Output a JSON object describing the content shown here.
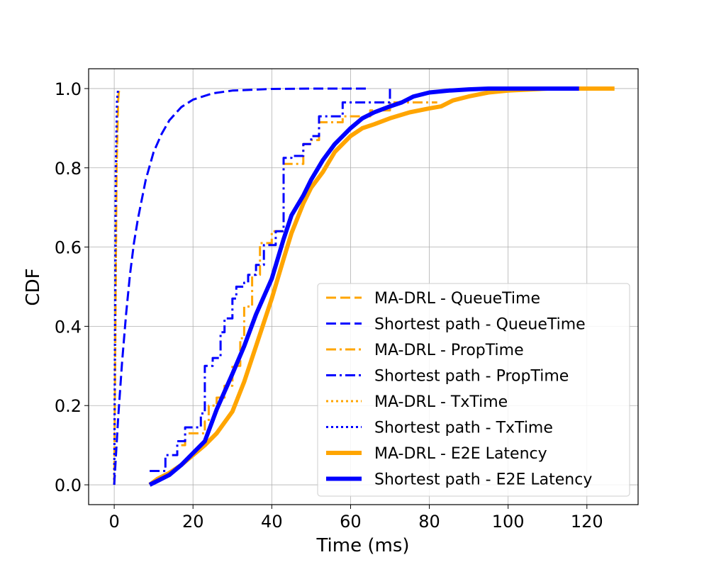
{
  "chart_data": {
    "type": "line",
    "xlabel": "Time (ms)",
    "ylabel": "CDF",
    "xlim": [
      -6.5,
      133
    ],
    "ylim": [
      -0.05,
      1.05
    ],
    "xticks": [
      0,
      20,
      40,
      60,
      80,
      100,
      120
    ],
    "yticks": [
      0.0,
      0.2,
      0.4,
      0.6,
      0.8,
      1.0
    ],
    "xtick_labels": [
      "0",
      "20",
      "40",
      "60",
      "80",
      "100",
      "120"
    ],
    "ytick_labels": [
      "0.0",
      "0.2",
      "0.4",
      "0.6",
      "0.8",
      "1.0"
    ],
    "grid": true,
    "legend_position": "lower-right",
    "series": [
      {
        "name": "MA-DRL - QueueTime",
        "color": "#FFA500",
        "style": "dashed",
        "thick": false,
        "step": false,
        "x": [
          0,
          0.3,
          0.6,
          1.0,
          1.2
        ],
        "y": [
          0,
          0.4,
          0.8,
          0.97,
          1.0
        ]
      },
      {
        "name": "Shortest path - QueueTime",
        "color": "#0000FF",
        "style": "dashed",
        "thick": false,
        "step": false,
        "x": [
          0,
          1,
          2,
          3,
          4,
          5,
          6,
          8,
          10,
          12,
          14,
          17,
          20,
          25,
          30,
          40,
          50,
          64
        ],
        "y": [
          0,
          0.17,
          0.31,
          0.43,
          0.53,
          0.61,
          0.67,
          0.77,
          0.84,
          0.885,
          0.92,
          0.953,
          0.972,
          0.988,
          0.995,
          0.999,
          1.0,
          1.0
        ]
      },
      {
        "name": "MA-DRL - PropTime",
        "color": "#FFA500",
        "style": "dashdot",
        "thick": false,
        "step": true,
        "x": [
          17,
          18,
          23,
          24,
          26,
          28,
          30,
          32,
          33,
          35,
          37,
          40,
          43,
          45,
          48,
          50,
          52,
          55,
          58,
          62,
          65,
          70,
          82
        ],
        "y": [
          0.1,
          0.13,
          0.16,
          0.2,
          0.22,
          0.25,
          0.3,
          0.37,
          0.45,
          0.53,
          0.61,
          0.64,
          0.81,
          0.81,
          0.86,
          0.87,
          0.915,
          0.915,
          0.93,
          0.93,
          0.945,
          0.965,
          0.965
        ]
      },
      {
        "name": "Shortest path - PropTime",
        "color": "#0000FF",
        "style": "dashdot",
        "thick": false,
        "step": true,
        "x": [
          9,
          13,
          16,
          18,
          22,
          23,
          25,
          27,
          28,
          30,
          31,
          33,
          34,
          36,
          38,
          41,
          43,
          45,
          48,
          50,
          52,
          58,
          62,
          70
        ],
        "y": [
          0.035,
          0.075,
          0.11,
          0.145,
          0.18,
          0.3,
          0.32,
          0.385,
          0.42,
          0.47,
          0.5,
          0.51,
          0.53,
          0.555,
          0.605,
          0.64,
          0.825,
          0.83,
          0.86,
          0.88,
          0.93,
          0.965,
          0.965,
          1.0
        ]
      },
      {
        "name": "MA-DRL - TxTime",
        "color": "#FFA500",
        "style": "dotted",
        "thick": false,
        "step": false,
        "x": [
          0,
          0.3,
          0.6,
          0.9,
          1.3
        ],
        "y": [
          0,
          0.4,
          0.8,
          0.97,
          1.0
        ]
      },
      {
        "name": "Shortest path - TxTime",
        "color": "#0000FF",
        "style": "dotted",
        "thick": false,
        "step": false,
        "x": [
          0,
          0.2,
          0.4,
          0.7,
          1.0
        ],
        "y": [
          0,
          0.4,
          0.8,
          0.97,
          1.0
        ]
      },
      {
        "name": "MA-DRL - E2E Latency",
        "color": "#FFA500",
        "style": "solid",
        "thick": true,
        "step": false,
        "x": [
          9,
          11,
          14,
          17,
          20,
          23,
          26,
          30,
          33,
          36,
          40,
          43,
          45,
          48,
          50,
          53,
          56,
          60,
          63,
          66,
          70,
          75,
          80,
          83,
          86,
          90,
          95,
          100,
          110,
          127
        ],
        "y": [
          0,
          0.015,
          0.03,
          0.05,
          0.075,
          0.1,
          0.13,
          0.185,
          0.26,
          0.35,
          0.47,
          0.57,
          0.635,
          0.71,
          0.75,
          0.79,
          0.84,
          0.88,
          0.9,
          0.91,
          0.925,
          0.94,
          0.95,
          0.955,
          0.97,
          0.98,
          0.99,
          0.995,
          1.0,
          1.0
        ]
      },
      {
        "name": "Shortest path - E2E Latency",
        "color": "#0000FF",
        "style": "solid",
        "thick": true,
        "step": false,
        "x": [
          9,
          11,
          14,
          17,
          20,
          23,
          26,
          30,
          33,
          36,
          40,
          43,
          45,
          48,
          50,
          53,
          56,
          60,
          63,
          66,
          70,
          73,
          76,
          80,
          85,
          90,
          95,
          100,
          118
        ],
        "y": [
          0,
          0.01,
          0.025,
          0.05,
          0.08,
          0.11,
          0.19,
          0.28,
          0.35,
          0.43,
          0.52,
          0.62,
          0.68,
          0.73,
          0.77,
          0.82,
          0.86,
          0.9,
          0.925,
          0.94,
          0.955,
          0.965,
          0.98,
          0.99,
          0.995,
          0.998,
          1.0,
          1.0,
          1.0
        ]
      }
    ]
  }
}
